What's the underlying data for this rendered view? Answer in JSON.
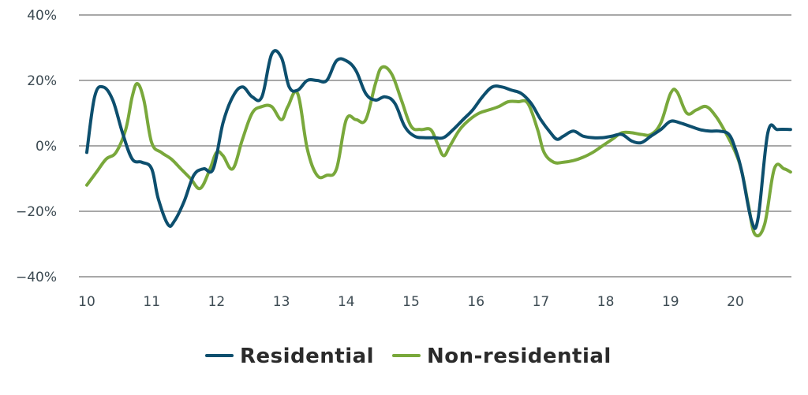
{
  "chart_data": {
    "type": "line",
    "title": "",
    "xlabel": "",
    "ylabel": "",
    "xlim": [
      10,
      20.9
    ],
    "ylim": [
      -40,
      40
    ],
    "y_ticks": [
      40,
      20,
      0,
      -20,
      -40
    ],
    "y_tick_labels": [
      "40%",
      "20%",
      "0%",
      "−20%",
      "−40%"
    ],
    "x_ticks": [
      10,
      11,
      12,
      13,
      14,
      15,
      16,
      17,
      18,
      19,
      20
    ],
    "x_tick_labels": [
      "10",
      "11",
      "12",
      "13",
      "14",
      "15",
      "16",
      "17",
      "18",
      "19",
      "20"
    ],
    "grid": true,
    "legend": "bottom-center",
    "series": [
      {
        "name": "Residential",
        "color": "#0d4f6e",
        "x": [
          10,
          10.12,
          10.25,
          10.4,
          10.55,
          10.7,
          10.85,
          11,
          11.1,
          11.25,
          11.35,
          11.5,
          11.65,
          11.8,
          11.95,
          12.1,
          12.25,
          12.4,
          12.55,
          12.7,
          12.85,
          13,
          13.12,
          13.25,
          13.4,
          13.55,
          13.7,
          13.85,
          14,
          14.15,
          14.3,
          14.45,
          14.6,
          14.75,
          14.9,
          15.05,
          15.2,
          15.35,
          15.5,
          15.65,
          15.8,
          15.95,
          16.1,
          16.25,
          16.4,
          16.55,
          16.7,
          16.85,
          17,
          17.15,
          17.25,
          17.35,
          17.5,
          17.65,
          17.8,
          17.95,
          18.1,
          18.25,
          18.4,
          18.55,
          18.7,
          18.85,
          19,
          19.15,
          19.3,
          19.45,
          19.6,
          19.75,
          19.9,
          20,
          20.1,
          20.25,
          20.35,
          20.5,
          20.65,
          20.85
        ],
        "values": [
          -2,
          15,
          18,
          14,
          4,
          -4,
          -5,
          -7,
          -16,
          -24,
          -23,
          -17,
          -9,
          -7,
          -7,
          7,
          15,
          18,
          15,
          15,
          28,
          27,
          18,
          17,
          20,
          20,
          20,
          26,
          26,
          23,
          16,
          14,
          15,
          13,
          6,
          3,
          2.5,
          2.5,
          2.5,
          5,
          8,
          11,
          15,
          18,
          18,
          17,
          16,
          13,
          8,
          4,
          2,
          3,
          4.5,
          3,
          2.5,
          2.5,
          3,
          3.5,
          1.5,
          1,
          3,
          5,
          7.5,
          7,
          6,
          5,
          4.5,
          4.5,
          3.5,
          -1,
          -8,
          -23,
          -22,
          4,
          5,
          5
        ]
      },
      {
        "name": "Non-residential",
        "color": "#79a83b",
        "x": [
          10,
          10.15,
          10.3,
          10.45,
          10.6,
          10.7,
          10.78,
          10.88,
          11,
          11.15,
          11.3,
          11.45,
          11.6,
          11.75,
          11.9,
          12,
          12.1,
          12.25,
          12.4,
          12.55,
          12.7,
          12.85,
          13,
          13.1,
          13.25,
          13.4,
          13.55,
          13.7,
          13.85,
          14,
          14.15,
          14.3,
          14.45,
          14.55,
          14.7,
          14.85,
          15,
          15.15,
          15.3,
          15.4,
          15.5,
          15.6,
          15.75,
          15.9,
          16.05,
          16.2,
          16.35,
          16.5,
          16.65,
          16.8,
          16.95,
          17.05,
          17.2,
          17.35,
          17.5,
          17.65,
          17.8,
          17.95,
          18.1,
          18.25,
          18.4,
          18.55,
          18.7,
          18.85,
          19,
          19.1,
          19.25,
          19.4,
          19.55,
          19.7,
          19.85,
          20,
          20.1,
          20.2,
          20.3,
          20.45,
          20.6,
          20.75,
          20.85
        ],
        "values": [
          -12,
          -8,
          -4,
          -2,
          5,
          15,
          19,
          14,
          1,
          -2,
          -4,
          -7,
          -10,
          -13,
          -7,
          -2,
          -3,
          -7,
          2,
          10,
          12,
          12,
          8,
          12,
          16,
          -1,
          -9,
          -9,
          -7,
          8,
          8,
          8,
          19,
          24,
          22,
          14,
          6,
          5,
          5,
          1,
          -3,
          0,
          5,
          8,
          10,
          11,
          12,
          13.5,
          13.5,
          13,
          5,
          -2,
          -5,
          -5,
          -4.5,
          -3.5,
          -2,
          0,
          2,
          4,
          4,
          3.5,
          3.5,
          7,
          16,
          16.5,
          10,
          11,
          12,
          9,
          4,
          -2,
          -8,
          -18,
          -27,
          -24,
          -7,
          -7,
          -8
        ]
      }
    ]
  }
}
